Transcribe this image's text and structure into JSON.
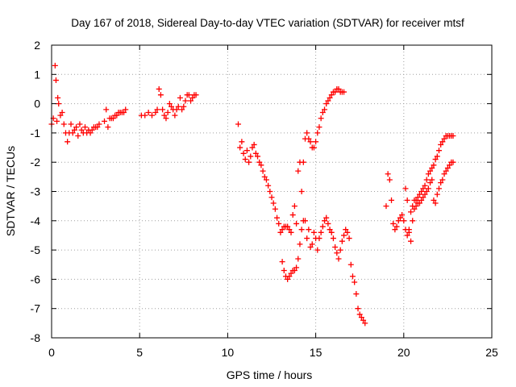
{
  "chart_data": {
    "type": "scatter",
    "title": "Day 167 of 2018, Sidereal Day-to-day VTEC variation (SDTVAR) for receiver mtsf",
    "xlabel": "GPS time / hours",
    "ylabel": "SDTVAR / TECUs",
    "xlim": [
      0,
      25
    ],
    "ylim": [
      -8,
      2
    ],
    "xticks": [
      "0",
      "5",
      "10",
      "15",
      "20",
      "25"
    ],
    "yticks": [
      "-8",
      "-7",
      "-6",
      "-5",
      "-4",
      "-3",
      "-2",
      "-1",
      "0",
      "1",
      "2"
    ],
    "grid": true,
    "marker": "+",
    "color": "#ff0000",
    "segments": [
      {
        "x": [
          0.0,
          0.1,
          0.2,
          0.25,
          0.3,
          0.35,
          0.4,
          0.5,
          0.6,
          0.7,
          0.8,
          0.9,
          1.0,
          1.1,
          1.2,
          1.3,
          1.4,
          1.5,
          1.6,
          1.7,
          1.8,
          1.9,
          2.0,
          2.1,
          2.2,
          2.3,
          2.4,
          2.5,
          2.6,
          2.7
        ],
        "y": [
          -0.7,
          -0.5,
          1.3,
          0.8,
          -0.6,
          0.2,
          0.0,
          -0.4,
          -0.3,
          -0.7,
          -1.0,
          -1.3,
          -1.0,
          -0.7,
          -1.0,
          -0.9,
          -0.8,
          -1.1,
          -0.7,
          -0.9,
          -1.0,
          -0.8,
          -1.0,
          -0.9,
          -1.0,
          -0.9,
          -0.8,
          -0.8,
          -0.8,
          -0.7
        ]
      },
      {
        "x": [
          3.0,
          3.1,
          3.2,
          3.3,
          3.4,
          3.5,
          3.6,
          3.7,
          3.8,
          3.9,
          4.0,
          4.1,
          4.2
        ],
        "y": [
          -0.6,
          -0.2,
          -0.8,
          -0.5,
          -0.5,
          -0.5,
          -0.4,
          -0.4,
          -0.3,
          -0.3,
          -0.3,
          -0.3,
          -0.2
        ]
      },
      {
        "x": [
          5.1,
          5.3,
          5.5,
          5.7,
          5.9,
          6.0,
          6.1,
          6.2,
          6.3,
          6.4,
          6.5,
          6.6,
          6.7,
          6.8,
          6.9,
          7.0,
          7.1,
          7.2,
          7.3,
          7.4,
          7.5,
          7.6,
          7.7,
          7.8,
          7.9,
          8.0,
          8.1,
          8.2
        ],
        "y": [
          -0.4,
          -0.4,
          -0.3,
          -0.4,
          -0.3,
          -0.2,
          0.5,
          0.3,
          -0.2,
          -0.4,
          -0.5,
          -0.3,
          0.0,
          -0.1,
          -0.2,
          -0.4,
          -0.2,
          -0.1,
          0.2,
          -0.2,
          -0.1,
          0.1,
          0.3,
          0.3,
          0.1,
          0.2,
          0.3,
          0.3
        ]
      },
      {
        "x": [
          10.6,
          10.7,
          10.8,
          10.9,
          11.0,
          11.1,
          11.2,
          11.3,
          11.4,
          11.5,
          11.6,
          11.7,
          11.8,
          11.9,
          12.0,
          12.1,
          12.2,
          12.3,
          12.4,
          12.5,
          12.6,
          12.7,
          12.8,
          12.9,
          13.0,
          13.1,
          13.2,
          13.3,
          13.4,
          13.5,
          13.6,
          13.7,
          13.8,
          13.9,
          14.0,
          14.1,
          14.2,
          14.3,
          14.4,
          14.5,
          14.6,
          14.7,
          14.8,
          14.9,
          15.0,
          15.1,
          15.2,
          15.3,
          15.4,
          15.5,
          15.6,
          15.7,
          15.8,
          15.9,
          16.0,
          16.1,
          16.2,
          16.3,
          16.4,
          16.5,
          16.6
        ],
        "y": [
          -0.7,
          -1.5,
          -1.3,
          -1.7,
          -1.9,
          -1.6,
          -2.0,
          -1.8,
          -1.5,
          -1.4,
          -1.7,
          -1.8,
          -2.0,
          -2.1,
          -2.3,
          -2.5,
          -2.6,
          -2.8,
          -3.0,
          -3.2,
          -3.4,
          -3.6,
          -3.9,
          -4.1,
          -4.4,
          -4.3,
          -4.2,
          -4.2,
          -4.2,
          -4.3,
          -4.4,
          -3.8,
          -3.5,
          -4.1,
          -2.3,
          -2.0,
          -3.0,
          -2.0,
          -1.2,
          -1.0,
          -1.2,
          -1.3,
          -1.5,
          -1.5,
          -1.3,
          -1.0,
          -0.8,
          -0.5,
          -0.3,
          -0.2,
          0.0,
          0.1,
          0.2,
          0.3,
          0.4,
          0.4,
          0.5,
          0.5,
          0.4,
          0.4,
          0.4
        ]
      },
      {
        "x": [
          13.1,
          13.2,
          13.3,
          13.4,
          13.5,
          13.6,
          13.7,
          13.8,
          13.9,
          14.0,
          14.1,
          14.2,
          14.3,
          14.4,
          14.5,
          14.6,
          14.7,
          14.8,
          14.9,
          15.0,
          15.1,
          15.2,
          15.3,
          15.4,
          15.5,
          15.6,
          15.7,
          15.8,
          15.9,
          16.0,
          16.1,
          16.2,
          16.3,
          16.4,
          16.5,
          16.6,
          16.7,
          16.8,
          16.9,
          17.0,
          17.1,
          17.2,
          17.3,
          17.4,
          17.5,
          17.6,
          17.7,
          17.8
        ],
        "y": [
          -5.4,
          -5.7,
          -5.9,
          -6.0,
          -5.9,
          -5.8,
          -5.7,
          -5.7,
          -5.6,
          -5.3,
          -4.8,
          -4.3,
          -4.0,
          -4.0,
          -4.6,
          -4.3,
          -4.9,
          -4.8,
          -4.4,
          -4.6,
          -5.0,
          -4.6,
          -4.4,
          -4.2,
          -4.0,
          -3.9,
          -4.1,
          -4.3,
          -4.4,
          -4.6,
          -4.9,
          -5.1,
          -5.3,
          -5.0,
          -4.7,
          -4.5,
          -4.3,
          -4.4,
          -4.6,
          -5.5,
          -5.9,
          -6.1,
          -6.5,
          -7.0,
          -7.2,
          -7.3,
          -7.4,
          -7.5
        ]
      },
      {
        "x": [
          19.0,
          19.1,
          19.2,
          19.3,
          19.4,
          19.5,
          19.6,
          19.7,
          19.8,
          19.9,
          20.0,
          20.1,
          20.2,
          20.3,
          20.4,
          20.5,
          20.6,
          20.7,
          20.8,
          20.9,
          21.0,
          21.1,
          21.2,
          21.3,
          21.4,
          21.5,
          21.6,
          21.7,
          21.8,
          21.9,
          22.0,
          22.1,
          22.2,
          22.3,
          22.4,
          22.5,
          22.6,
          22.7,
          22.8
        ],
        "y": [
          -3.5,
          -2.4,
          -2.6,
          -3.3,
          -4.1,
          -4.3,
          -4.2,
          -4.0,
          -3.9,
          -3.8,
          -4.0,
          -4.3,
          -4.5,
          -4.3,
          -3.7,
          -3.5,
          -3.3,
          -3.3,
          -3.2,
          -3.1,
          -3.0,
          -2.9,
          -2.8,
          -2.6,
          -2.4,
          -2.3,
          -2.2,
          -2.1,
          -1.9,
          -1.8,
          -1.6,
          -1.4,
          -1.3,
          -1.2,
          -1.1,
          -1.1,
          -1.1,
          -1.1,
          -1.1
        ]
      },
      {
        "x": [
          20.1,
          20.2,
          20.3,
          20.4,
          20.5,
          20.6,
          20.7,
          20.8,
          20.9,
          21.0,
          21.1,
          21.2,
          21.3,
          21.4,
          21.5,
          21.6,
          21.7,
          21.8,
          21.9,
          22.0,
          22.1,
          22.2,
          22.3,
          22.4,
          22.5,
          22.6,
          22.7,
          22.8
        ],
        "y": [
          -2.9,
          -3.3,
          -4.4,
          -4.7,
          -4.0,
          -3.6,
          -3.5,
          -3.4,
          -3.4,
          -3.3,
          -3.2,
          -3.1,
          -3.0,
          -2.9,
          -2.7,
          -2.6,
          -3.3,
          -3.4,
          -3.1,
          -2.9,
          -2.7,
          -2.6,
          -2.4,
          -2.3,
          -2.2,
          -2.1,
          -2.0,
          -2.0
        ]
      }
    ]
  }
}
